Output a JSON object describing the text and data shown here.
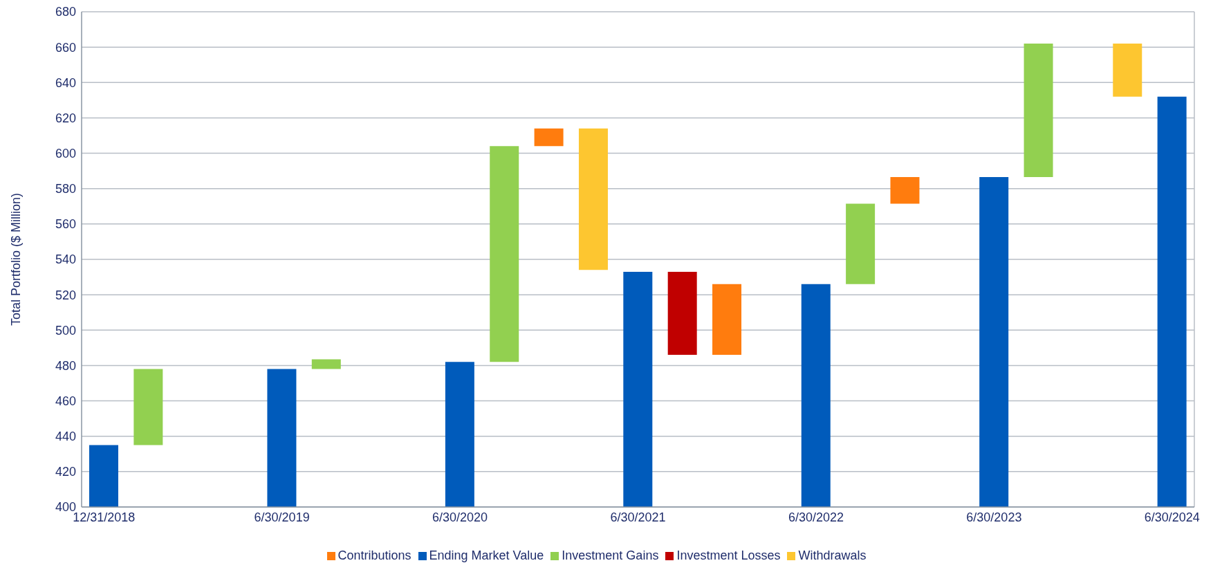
{
  "chart_data": {
    "type": "bar",
    "ylabel": "Total Portfolio ($ Million)",
    "categories": [
      "12/31/2018",
      null,
      null,
      null,
      "6/30/2019",
      null,
      null,
      null,
      "6/30/2020",
      null,
      null,
      null,
      "6/30/2021",
      null,
      null,
      null,
      "6/30/2022",
      null,
      null,
      null,
      "6/30/2023",
      null,
      null,
      null,
      "6/30/2024"
    ],
    "series": [
      {
        "name": "Ending Market Value",
        "color": "#005bbb",
        "values": [
          435,
          null,
          null,
          null,
          478,
          null,
          null,
          null,
          482,
          null,
          null,
          null,
          533,
          null,
          null,
          null,
          526,
          null,
          null,
          null,
          586.5,
          null,
          null,
          null,
          632
        ]
      },
      {
        "name": "Investment Gains",
        "color": "#92d050",
        "values": [
          null,
          43,
          null,
          null,
          null,
          5.5,
          null,
          null,
          null,
          122,
          null,
          null,
          null,
          null,
          null,
          null,
          null,
          45.5,
          null,
          null,
          null,
          75.5,
          null,
          null,
          null
        ],
        "base": [
          null,
          435,
          null,
          null,
          null,
          478,
          null,
          null,
          null,
          482,
          null,
          null,
          null,
          null,
          null,
          null,
          null,
          526,
          null,
          null,
          null,
          586.5,
          null,
          null,
          null
        ]
      },
      {
        "name": "Investment Losses",
        "color": "#c00000",
        "values": [
          null,
          null,
          null,
          null,
          null,
          null,
          null,
          null,
          null,
          null,
          null,
          null,
          null,
          47,
          null,
          null,
          null,
          null,
          null,
          null,
          null,
          null,
          null,
          null,
          null
        ],
        "base": [
          null,
          null,
          null,
          null,
          null,
          null,
          null,
          null,
          null,
          null,
          null,
          null,
          null,
          486,
          null,
          null,
          null,
          null,
          null,
          null,
          null,
          null,
          null,
          null,
          null
        ]
      },
      {
        "name": "Contributions",
        "color": "#ff7c0e",
        "values": [
          null,
          null,
          null,
          null,
          null,
          null,
          null,
          null,
          null,
          null,
          10,
          null,
          null,
          null,
          40,
          null,
          null,
          null,
          15,
          null,
          null,
          null,
          null,
          null,
          null
        ],
        "base": [
          null,
          null,
          null,
          null,
          null,
          null,
          null,
          null,
          null,
          null,
          604,
          null,
          null,
          null,
          486,
          null,
          null,
          null,
          571.5,
          null,
          null,
          null,
          null,
          null,
          null
        ]
      },
      {
        "name": "Withdrawals",
        "color": "#fdc630",
        "values": [
          null,
          null,
          null,
          null,
          null,
          null,
          null,
          null,
          null,
          null,
          null,
          80,
          null,
          null,
          null,
          null,
          null,
          null,
          null,
          null,
          null,
          null,
          null,
          30,
          null
        ],
        "base": [
          null,
          null,
          null,
          null,
          null,
          null,
          null,
          null,
          null,
          null,
          null,
          534,
          null,
          null,
          null,
          null,
          null,
          null,
          null,
          null,
          null,
          null,
          null,
          632,
          null
        ]
      }
    ],
    "ylim": [
      400,
      680
    ],
    "yticks": [
      400,
      420,
      440,
      460,
      480,
      500,
      520,
      540,
      560,
      580,
      600,
      620,
      640,
      660,
      680
    ],
    "grid": "y",
    "legend": "bottom"
  }
}
